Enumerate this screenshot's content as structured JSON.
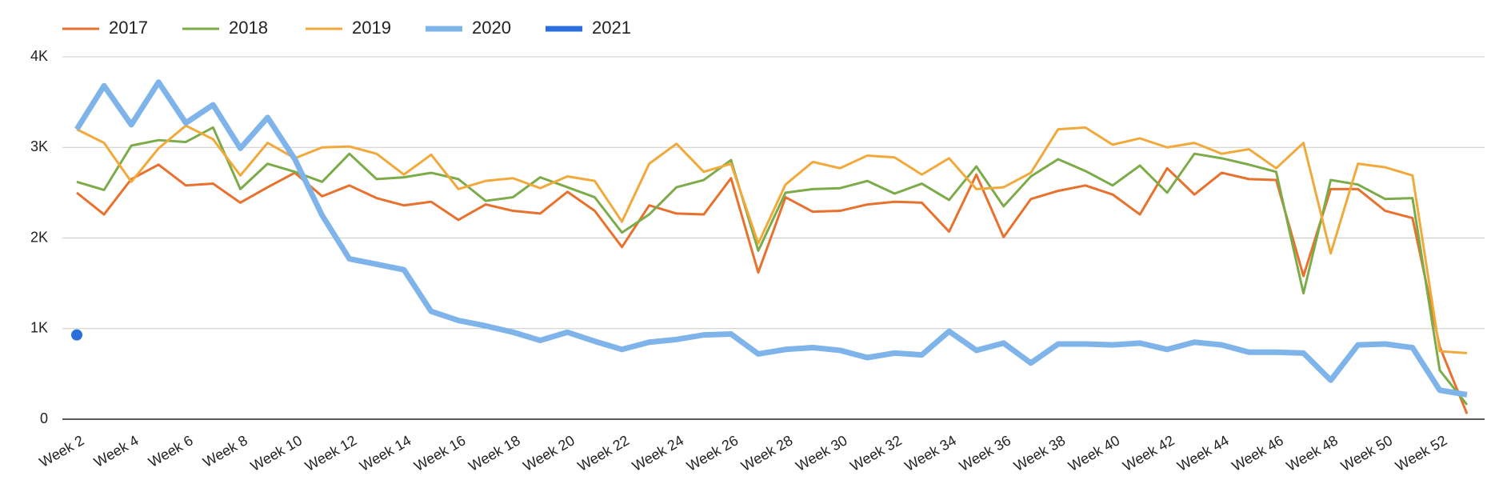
{
  "chart_data": {
    "type": "line",
    "categories": [
      "Week 2",
      null,
      "Week 4",
      null,
      "Week 6",
      null,
      "Week 8",
      null,
      "Week 10",
      null,
      "Week 12",
      null,
      "Week 14",
      null,
      "Week 16",
      null,
      "Week 18",
      null,
      "Week 20",
      null,
      "Week 22",
      null,
      "Week 24",
      null,
      "Week 26",
      null,
      "Week 28",
      null,
      "Week 30",
      null,
      "Week 32",
      null,
      "Week 34",
      null,
      "Week 36",
      null,
      "Week 38",
      null,
      "Week 40",
      null,
      "Week 42",
      null,
      "Week 44",
      null,
      "Week 46",
      null,
      "Week 48",
      null,
      "Week 50",
      null,
      "Week 52",
      null
    ],
    "series": [
      {
        "name": "2017",
        "color": "#e8712e",
        "values": [
          2500,
          2260,
          2650,
          2810,
          2580,
          2600,
          2390,
          2560,
          2720,
          2460,
          2580,
          2440,
          2360,
          2400,
          2200,
          2370,
          2300,
          2270,
          2510,
          2300,
          1900,
          2360,
          2270,
          2260,
          2660,
          1620,
          2450,
          2290,
          2300,
          2370,
          2400,
          2390,
          2070,
          2700,
          2010,
          2430,
          2520,
          2580,
          2480,
          2260,
          2770,
          2480,
          2720,
          2650,
          2640,
          1580,
          2540,
          2540,
          2300,
          2220,
          800,
          60
        ]
      },
      {
        "name": "2018",
        "color": "#7cab4a",
        "values": [
          2620,
          2530,
          3020,
          3080,
          3060,
          3220,
          2540,
          2820,
          2730,
          2620,
          2930,
          2650,
          2670,
          2720,
          2650,
          2410,
          2450,
          2670,
          2560,
          2450,
          2060,
          2260,
          2560,
          2640,
          2860,
          1860,
          2500,
          2540,
          2550,
          2630,
          2490,
          2600,
          2420,
          2790,
          2350,
          2680,
          2870,
          2740,
          2580,
          2800,
          2500,
          2930,
          2880,
          2810,
          2730,
          1390,
          2640,
          2590,
          2430,
          2440,
          540,
          160
        ]
      },
      {
        "name": "2019",
        "color": "#f2a93b",
        "values": [
          3200,
          3050,
          2620,
          2990,
          3240,
          3090,
          2690,
          3050,
          2880,
          3000,
          3010,
          2930,
          2700,
          2920,
          2540,
          2630,
          2660,
          2550,
          2680,
          2630,
          2180,
          2820,
          3040,
          2730,
          2820,
          1940,
          2590,
          2840,
          2770,
          2910,
          2890,
          2700,
          2880,
          2540,
          2560,
          2720,
          3200,
          3220,
          3030,
          3100,
          3000,
          3050,
          2930,
          2980,
          2770,
          3050,
          1830,
          2820,
          2780,
          2690,
          750,
          730
        ]
      },
      {
        "name": "2020",
        "color": "#7fb4ea",
        "values": [
          3200,
          3680,
          3250,
          3720,
          3270,
          3470,
          2990,
          3330,
          2870,
          2250,
          1770,
          1710,
          1650,
          1190,
          1090,
          1030,
          960,
          870,
          960,
          860,
          770,
          850,
          880,
          930,
          940,
          720,
          770,
          790,
          760,
          680,
          730,
          710,
          970,
          760,
          840,
          620,
          830,
          830,
          820,
          840,
          770,
          850,
          820,
          740,
          740,
          730,
          430,
          820,
          830,
          790,
          320,
          270
        ]
      },
      {
        "name": "2021",
        "color": "#2a6fdb",
        "values": [
          930,
          null,
          null,
          null,
          null,
          null,
          null,
          null,
          null,
          null,
          null,
          null,
          null,
          null,
          null,
          null,
          null,
          null,
          null,
          null,
          null,
          null,
          null,
          null,
          null,
          null,
          null,
          null,
          null,
          null,
          null,
          null,
          null,
          null,
          null,
          null,
          null,
          null,
          null,
          null,
          null,
          null,
          null,
          null,
          null,
          null,
          null,
          null,
          null,
          null,
          null,
          null
        ]
      }
    ],
    "ylim": [
      0,
      4000
    ],
    "yticks": [
      0,
      {
        "value": 1000,
        "label": "1K"
      },
      {
        "value": 2000,
        "label": "2K"
      },
      {
        "value": 3000,
        "label": "3K"
      },
      {
        "value": 4000,
        "label": "4K"
      }
    ],
    "grid": true
  }
}
